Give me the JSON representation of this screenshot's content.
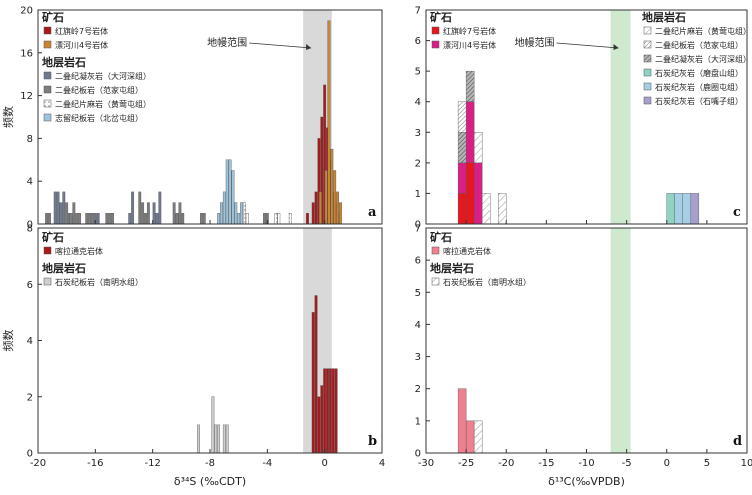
{
  "chart_data": [
    {
      "panel": "a",
      "type": "bar",
      "ylabel": "频数",
      "xlim": [
        -20,
        4
      ],
      "ylim": [
        0,
        20
      ],
      "yticks": [
        0,
        4,
        8,
        12,
        16,
        20
      ],
      "band": {
        "label": "地幔范围",
        "from": -1.5,
        "to": 0.5
      },
      "legend": {
        "groups": [
          {
            "head": "矿石",
            "items": [
              {
                "label": "红旗岭7号岩体",
                "color": "#a8191b",
                "pattern": "solid"
              },
              {
                "label": "漂河川4号岩体",
                "color": "#c98532",
                "pattern": "solid"
              }
            ]
          },
          {
            "head": "地层岩石",
            "items": [
              {
                "label": "二叠纪凝灰岩（大河深组）",
                "color": "#6e7a8f",
                "pattern": "solid"
              },
              {
                "label": "二叠纪板岩（范家屯组）",
                "color": "#7d7d7d",
                "pattern": "solid"
              },
              {
                "label": "二叠纪片麻岩（黄莺屯组）",
                "color": "#ffffff",
                "pattern": "dash"
              },
              {
                "label": "志留纪板岩（北岔屯组）",
                "color": "#9ec4dc",
                "pattern": "solid"
              }
            ]
          }
        ]
      },
      "series": [
        {
          "name": "二叠纪凝灰岩（大河深组）",
          "color": "#6e7a8f",
          "x": [
            -18.8,
            -18.6,
            -18.4,
            -18.2,
            -17.9,
            -16.0,
            -15.8,
            -13.6,
            -13.4,
            -11.9,
            -11.7,
            -11.5
          ],
          "values": [
            3,
            3,
            2,
            3,
            1,
            1,
            1,
            1,
            3,
            2,
            1,
            3
          ]
        },
        {
          "name": "二叠纪板岩（范家屯组）",
          "color": "#7d7d7d",
          "x": [
            -19.4,
            -19.2,
            -18.0,
            -17.7,
            -17.5,
            -17.3,
            -17.1,
            -16.6,
            -16.4,
            -16.2,
            -15.2,
            -15.0,
            -14.8,
            -12.9,
            -12.7,
            -12.5,
            -12.3,
            -10.5,
            -10.3,
            -10.1,
            -9.9,
            -8.6,
            -8.4,
            -4.2,
            -4.0
          ],
          "values": [
            1,
            1,
            2,
            1,
            2,
            1,
            1,
            1,
            1,
            1,
            1,
            1,
            1,
            3,
            2,
            1,
            2,
            2,
            1,
            2,
            1,
            1,
            1,
            1,
            1
          ]
        },
        {
          "name": "二叠纪片麻岩（黄莺屯组）",
          "color": "#ffffff",
          "x": [
            -5.6,
            -5.4,
            -3.4,
            -3.2,
            -2.4
          ],
          "values": [
            2,
            1,
            1,
            1,
            1
          ]
        },
        {
          "name": "志留纪板岩（北岔屯组）",
          "color": "#9ec4dc",
          "x": [
            -7.4,
            -7.2,
            -7.0,
            -6.8,
            -6.6,
            -6.4,
            -6.2,
            -6.0,
            -5.8
          ],
          "values": [
            1,
            2,
            3,
            6,
            6,
            5,
            2,
            1,
            2
          ]
        },
        {
          "name": "红旗岭7号岩体",
          "color": "#a8191b",
          "x": [
            -1.2,
            -0.8,
            -0.6,
            -0.4,
            -0.2,
            0.0,
            0.2,
            0.4,
            0.6,
            0.8,
            1.0
          ],
          "values": [
            1,
            2,
            3,
            8,
            10,
            13,
            9,
            6,
            3,
            2,
            1
          ]
        },
        {
          "name": "漂河川4号岩体",
          "color": "#c98532",
          "x": [
            -0.3,
            0.1,
            0.3,
            0.5,
            0.7,
            0.9,
            1.1
          ],
          "values": [
            3,
            5,
            19,
            7,
            5,
            3,
            2
          ]
        }
      ]
    },
    {
      "panel": "b",
      "type": "bar",
      "ylabel": "频数",
      "xlabel": "δ³⁴S (‰CDT)",
      "xlim": [
        -20,
        4
      ],
      "ylim": [
        0,
        8
      ],
      "yticks": [
        0,
        2,
        4,
        6,
        8
      ],
      "xticks": [
        -20,
        -16,
        -12,
        -8,
        -4,
        0,
        4
      ],
      "band": {
        "from": -1.5,
        "to": 0.5
      },
      "legend": {
        "groups": [
          {
            "head": "矿石",
            "items": [
              {
                "label": "喀拉通克岩体",
                "color": "#a8191b",
                "pattern": "solid"
              }
            ]
          },
          {
            "head": "地层岩石",
            "items": [
              {
                "label": "石炭纪板岩（南明水组）",
                "color": "#cfcfcf",
                "pattern": "solid"
              }
            ]
          }
        ]
      },
      "series": [
        {
          "name": "石炭纪板岩（南明水组）",
          "color": "#cfcfcf",
          "x": [
            -8.8,
            -7.8,
            -7.6,
            -7.4,
            -7.0,
            -6.8
          ],
          "values": [
            1,
            2,
            1,
            1,
            1,
            1
          ]
        },
        {
          "name": "喀拉通克岩体",
          "color": "#a8191b",
          "x": [
            -0.8,
            -0.6,
            -0.4,
            -0.2,
            0.0,
            0.2,
            0.4,
            0.6,
            0.8
          ],
          "values": [
            5,
            5.6,
            2,
            2.4,
            3,
            3,
            3,
            3,
            3
          ]
        }
      ]
    },
    {
      "panel": "c",
      "type": "bar",
      "xlim": [
        -30,
        10
      ],
      "ylim": [
        0,
        7
      ],
      "yticks": [
        0,
        1,
        2,
        3,
        4,
        5,
        6,
        7
      ],
      "band": {
        "label": "地幔范围",
        "from": -7,
        "to": -4.5
      },
      "legend": {
        "groups": [
          {
            "head": "矿石",
            "items": [
              {
                "label": "红旗岭7号岩体",
                "color": "#e5171f",
                "pattern": "solid"
              },
              {
                "label": "漂河川4号岩体",
                "color": "#d81f86",
                "pattern": "solid"
              }
            ]
          },
          {
            "head": "地层岩石",
            "items": [
              {
                "label": "二叠纪片麻岩（黄莺屯组）",
                "color": "#ffffff",
                "pattern": "diag-light"
              },
              {
                "label": "二叠纪板岩（范家屯组）",
                "color": "#ffffff",
                "pattern": "diag-dense"
              },
              {
                "label": "二叠纪凝灰岩（大河深组）",
                "color": "#bdbdbd",
                "pattern": "diag-dark"
              },
              {
                "label": "石炭纪灰岩（磨盘山组）",
                "color": "#8fd3c4",
                "pattern": "solid"
              },
              {
                "label": "石炭纪灰岩（鹿圈屯组）",
                "color": "#a6cfe6",
                "pattern": "solid"
              },
              {
                "label": "石炭纪灰岩（石嘴子组）",
                "color": "#a7a0cc",
                "pattern": "solid"
              }
            ]
          }
        ]
      },
      "series": [
        {
          "name": "红旗岭7号岩体",
          "color": "#e5171f",
          "x": [
            -26.0,
            -25.0
          ],
          "values": [
            1,
            2
          ]
        },
        {
          "name": "漂河川4号岩体",
          "color": "#d81f86",
          "x": [
            -26.0,
            -25.0,
            -24.0
          ],
          "values": [
            1,
            2,
            2
          ]
        },
        {
          "name": "二叠纪凝灰岩（大河深组）",
          "color": "#bdbdbd",
          "x": [
            -26.0,
            -25.0
          ],
          "values": [
            1,
            1
          ]
        },
        {
          "name": "二叠纪板岩（范家屯组）",
          "color": "#ffffff",
          "x": [
            -26.0
          ],
          "values": [
            1
          ]
        },
        {
          "name": "二叠纪片麻岩（黄莺屯组）",
          "color": "#ffffff",
          "x": [
            -24.0,
            -23.0,
            -21.0
          ],
          "values": [
            1,
            1,
            1
          ]
        },
        {
          "name": "石炭纪灰岩（磨盘山组）",
          "color": "#8fd3c4",
          "x": [
            0.0
          ],
          "values": [
            1
          ]
        },
        {
          "name": "石炭纪灰岩（鹿圈屯组）",
          "color": "#a6cfe6",
          "x": [
            1.0,
            2.0
          ],
          "values": [
            1,
            1
          ]
        },
        {
          "name": "石炭纪灰岩（石嘴子组）",
          "color": "#a7a0cc",
          "x": [
            3.0
          ],
          "values": [
            1
          ]
        }
      ]
    },
    {
      "panel": "d",
      "type": "bar",
      "xlabel": "δ¹³C(‰VPDB)",
      "xlim": [
        -30,
        10
      ],
      "ylim": [
        0,
        7
      ],
      "yticks": [
        0,
        1,
        2,
        3,
        4,
        5,
        6,
        7
      ],
      "xticks": [
        -30,
        -25,
        -20,
        -15,
        -10,
        -5,
        0,
        5,
        10
      ],
      "band": {
        "from": -7,
        "to": -4.5
      },
      "legend": {
        "groups": [
          {
            "head": "矿石",
            "items": [
              {
                "label": "喀拉通克岩体",
                "color": "#ee8090",
                "pattern": "solid"
              }
            ]
          },
          {
            "head": "地层岩石",
            "items": [
              {
                "label": "石炭纪板岩（南明水组）",
                "color": "#ffffff",
                "pattern": "diag-light"
              }
            ]
          }
        ]
      },
      "series": [
        {
          "name": "喀拉通克岩体",
          "color": "#ee8090",
          "x": [
            -26.0,
            -25.0
          ],
          "values": [
            2,
            1
          ]
        },
        {
          "name": "石炭纪板岩（南明水组）",
          "color": "#ffffff",
          "x": [
            -24.0
          ],
          "values": [
            1
          ]
        }
      ]
    }
  ]
}
